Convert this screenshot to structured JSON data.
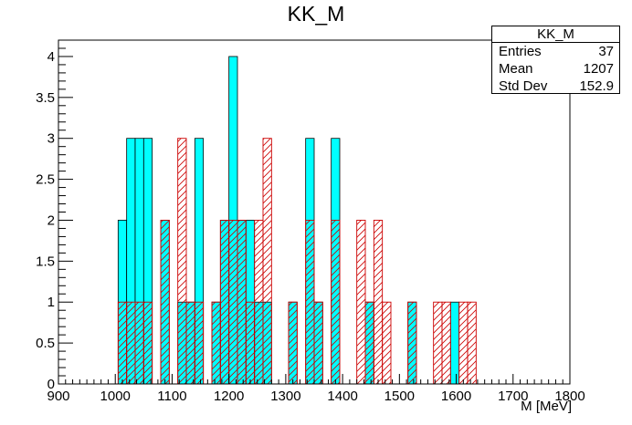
{
  "chart_data": {
    "type": "bar",
    "title": "KK_M",
    "xlabel": "M [MeV]",
    "ylabel": "",
    "xlim": [
      900,
      1800
    ],
    "ylim": [
      0,
      4.2
    ],
    "bin_width": 15,
    "x_ticks": [
      900,
      1000,
      1100,
      1200,
      1300,
      1400,
      1500,
      1600,
      1700,
      1800
    ],
    "y_ticks": [
      0,
      0.5,
      1,
      1.5,
      2,
      2.5,
      3,
      3.5,
      4
    ],
    "y_tick_labels": [
      "0",
      "0.5",
      "1",
      "1.5",
      "2",
      "2.5",
      "3",
      "3.5",
      "4"
    ],
    "series": [
      {
        "style": "filled",
        "color": "#00ffff",
        "bins": [
          {
            "x": 1005,
            "value": 2
          },
          {
            "x": 1020,
            "value": 3
          },
          {
            "x": 1035,
            "value": 3
          },
          {
            "x": 1050,
            "value": 3
          },
          {
            "x": 1080,
            "value": 2
          },
          {
            "x": 1110,
            "value": 1
          },
          {
            "x": 1125,
            "value": 1
          },
          {
            "x": 1140,
            "value": 3
          },
          {
            "x": 1170,
            "value": 1
          },
          {
            "x": 1185,
            "value": 2
          },
          {
            "x": 1200,
            "value": 4
          },
          {
            "x": 1215,
            "value": 2
          },
          {
            "x": 1230,
            "value": 2
          },
          {
            "x": 1245,
            "value": 1
          },
          {
            "x": 1260,
            "value": 1
          },
          {
            "x": 1305,
            "value": 1
          },
          {
            "x": 1335,
            "value": 3
          },
          {
            "x": 1350,
            "value": 1
          },
          {
            "x": 1380,
            "value": 3
          },
          {
            "x": 1440,
            "value": 1
          },
          {
            "x": 1515,
            "value": 1
          },
          {
            "x": 1590,
            "value": 1
          }
        ]
      },
      {
        "style": "hatched",
        "color": "#cc0000",
        "bins": [
          {
            "x": 1005,
            "value": 1
          },
          {
            "x": 1020,
            "value": 1
          },
          {
            "x": 1035,
            "value": 1
          },
          {
            "x": 1050,
            "value": 1
          },
          {
            "x": 1080,
            "value": 2
          },
          {
            "x": 1110,
            "value": 3
          },
          {
            "x": 1125,
            "value": 1
          },
          {
            "x": 1140,
            "value": 1
          },
          {
            "x": 1170,
            "value": 1
          },
          {
            "x": 1185,
            "value": 2
          },
          {
            "x": 1200,
            "value": 2
          },
          {
            "x": 1215,
            "value": 2
          },
          {
            "x": 1230,
            "value": 1
          },
          {
            "x": 1245,
            "value": 2
          },
          {
            "x": 1260,
            "value": 3
          },
          {
            "x": 1305,
            "value": 1
          },
          {
            "x": 1335,
            "value": 2
          },
          {
            "x": 1350,
            "value": 1
          },
          {
            "x": 1380,
            "value": 2
          },
          {
            "x": 1425,
            "value": 2
          },
          {
            "x": 1440,
            "value": 1
          },
          {
            "x": 1455,
            "value": 2
          },
          {
            "x": 1470,
            "value": 1
          },
          {
            "x": 1515,
            "value": 1
          },
          {
            "x": 1560,
            "value": 1
          },
          {
            "x": 1575,
            "value": 1
          },
          {
            "x": 1605,
            "value": 1
          },
          {
            "x": 1620,
            "value": 1
          }
        ]
      }
    ],
    "stats": {
      "header": "KK_M",
      "rows": [
        {
          "label": "Entries",
          "value": "37"
        },
        {
          "label": "Mean",
          "value": "1207"
        },
        {
          "label": "Std Dev",
          "value": "152.9"
        }
      ]
    }
  }
}
